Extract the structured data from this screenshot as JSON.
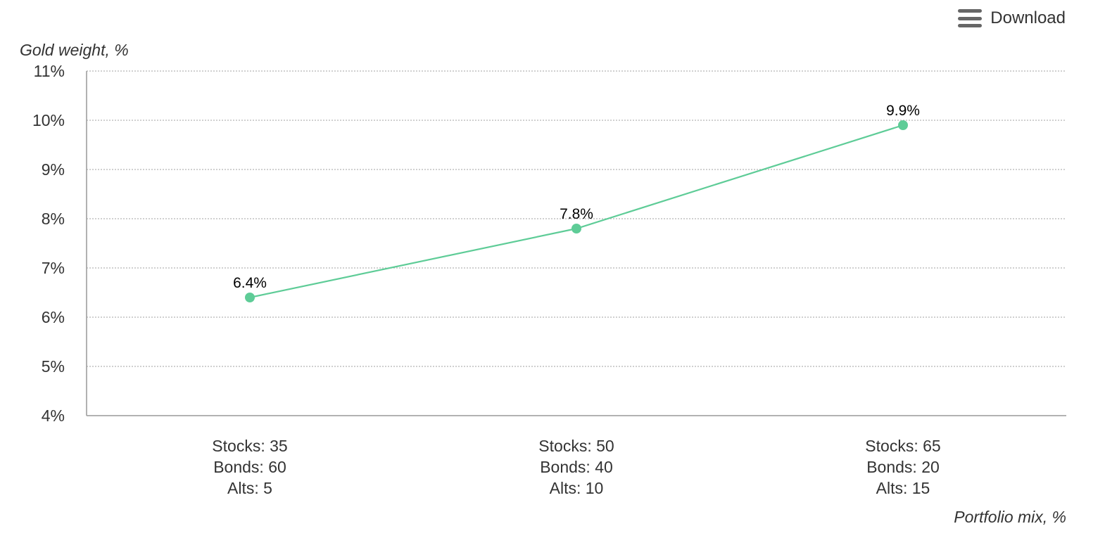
{
  "toolbar": {
    "download_label": "Download",
    "menu_icon": "hamburger-menu-icon"
  },
  "chart_data": {
    "type": "line",
    "title": "",
    "xlabel": "Portfolio mix, %",
    "ylabel": "Gold weight, %",
    "categories": [
      [
        "Stocks: 35",
        "Bonds: 60",
        "Alts: 5"
      ],
      [
        "Stocks: 50",
        "Bonds: 40",
        "Alts: 10"
      ],
      [
        "Stocks: 65",
        "Bonds: 20",
        "Alts: 15"
      ]
    ],
    "series": [
      {
        "values": [
          6.4,
          7.8,
          9.9
        ],
        "data_labels": [
          "6.4%",
          "7.8%",
          "9.9%"
        ],
        "color": "#5ecc97"
      }
    ],
    "ylim": [
      4,
      11
    ],
    "yticks": [
      "4%",
      "5%",
      "6%",
      "7%",
      "8%",
      "9%",
      "10%",
      "11%"
    ],
    "grid": true,
    "colors": {
      "gridline": "#b3b3b3",
      "axis": "#999999"
    }
  }
}
